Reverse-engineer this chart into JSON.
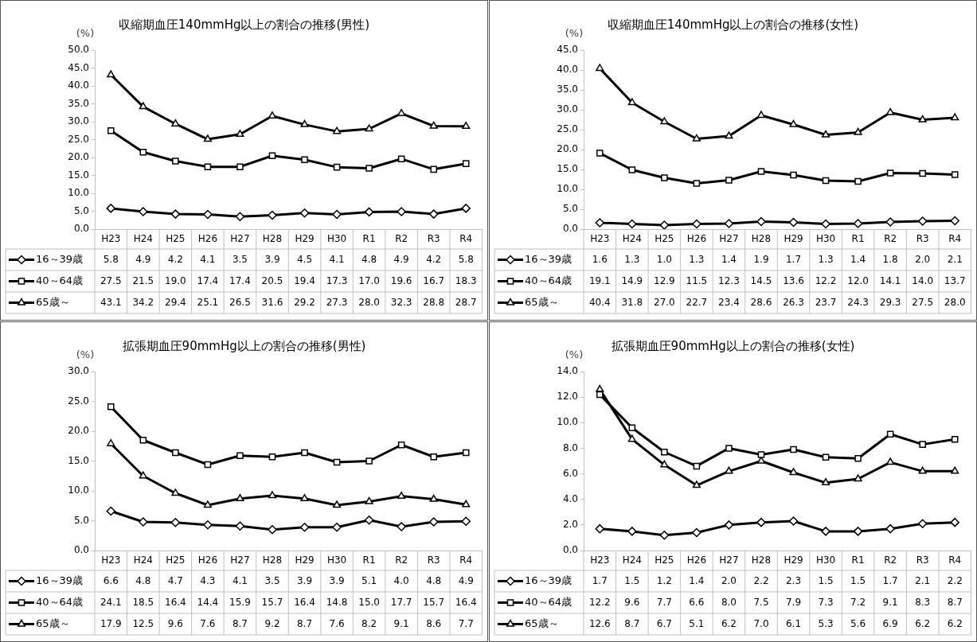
{
  "chart_data": [
    {
      "type": "line",
      "title": "収縮期血圧140mmHg以上の割合の推移(男性)",
      "ylabel": "(%)",
      "categories": [
        "H23",
        "H24",
        "H25",
        "H26",
        "H27",
        "H28",
        "H29",
        "H30",
        "R1",
        "R2",
        "R3",
        "R4"
      ],
      "ylim": [
        0,
        50
      ],
      "yticks": [
        {
          "value": 0,
          "label": "0.0"
        },
        {
          "value": 5,
          "label": "5.0"
        },
        {
          "value": 10,
          "label": "10.0"
        },
        {
          "value": 15,
          "label": "15.0"
        },
        {
          "value": 20,
          "label": "20.0"
        },
        {
          "value": 25,
          "label": "25.0"
        },
        {
          "value": 30,
          "label": "30.0"
        },
        {
          "value": 35,
          "label": "35.0"
        },
        {
          "value": 40,
          "label": "40.0"
        },
        {
          "value": 45,
          "label": "45.0"
        },
        {
          "value": 50,
          "label": "50.0"
        }
      ],
      "grid": false,
      "legend": "bottom left",
      "series": [
        {
          "name": "16～39歳",
          "color": "#000000",
          "marker": "diamond",
          "values": [
            5.8,
            4.9,
            4.2,
            4.1,
            3.5,
            3.9,
            4.5,
            4.1,
            4.8,
            4.9,
            4.2,
            5.8
          ],
          "value_labels": [
            "5.8",
            "4.9",
            "4.2",
            "4.1",
            "3.5",
            "3.9",
            "4.5",
            "4.1",
            "4.8",
            "4.9",
            "4.2",
            "5.8"
          ]
        },
        {
          "name": "40～64歳",
          "color": "#000000",
          "marker": "square",
          "values": [
            27.5,
            21.5,
            19.0,
            17.4,
            17.4,
            20.5,
            19.4,
            17.3,
            17.0,
            19.6,
            16.7,
            18.3
          ],
          "value_labels": [
            "27.5",
            "21.5",
            "19.0",
            "17.4",
            "17.4",
            "20.5",
            "19.4",
            "17.3",
            "17.0",
            "19.6",
            "16.7",
            "18.3"
          ]
        },
        {
          "name": "65歳～",
          "color": "#000000",
          "marker": "triangle",
          "values": [
            43.1,
            34.2,
            29.4,
            25.1,
            26.5,
            31.6,
            29.2,
            27.3,
            28.0,
            32.3,
            28.8,
            28.7
          ],
          "value_labels": [
            "43.1",
            "34.2",
            "29.4",
            "25.1",
            "26.5",
            "31.6",
            "29.2",
            "27.3",
            "28.0",
            "32.3",
            "28.8",
            "28.7"
          ]
        }
      ]
    },
    {
      "type": "line",
      "title": "収縮期血圧140mmHg以上の割合の推移(女性)",
      "ylabel": "(%)",
      "categories": [
        "H23",
        "H24",
        "H25",
        "H26",
        "H27",
        "H28",
        "H29",
        "H30",
        "R1",
        "R2",
        "R3",
        "R4"
      ],
      "ylim": [
        0,
        45
      ],
      "yticks": [
        {
          "value": 0,
          "label": "0.0"
        },
        {
          "value": 5,
          "label": "5.0"
        },
        {
          "value": 10,
          "label": "10.0"
        },
        {
          "value": 15,
          "label": "15.0"
        },
        {
          "value": 20,
          "label": "20.0"
        },
        {
          "value": 25,
          "label": "25.0"
        },
        {
          "value": 30,
          "label": "30.0"
        },
        {
          "value": 35,
          "label": "35.0"
        },
        {
          "value": 40,
          "label": "40.0"
        },
        {
          "value": 45,
          "label": "45.0"
        }
      ],
      "grid": false,
      "legend": "bottom left",
      "series": [
        {
          "name": "16～39歳",
          "color": "#000000",
          "marker": "diamond",
          "values": [
            1.6,
            1.3,
            1.0,
            1.3,
            1.4,
            1.9,
            1.7,
            1.3,
            1.4,
            1.8,
            2.0,
            2.1
          ],
          "value_labels": [
            "1.6",
            "1.3",
            "1.0",
            "1.3",
            "1.4",
            "1.9",
            "1.7",
            "1.3",
            "1.4",
            "1.8",
            "2.0",
            "2.1"
          ]
        },
        {
          "name": "40～64歳",
          "color": "#000000",
          "marker": "square",
          "values": [
            19.1,
            14.9,
            12.9,
            11.5,
            12.3,
            14.5,
            13.6,
            12.2,
            12.0,
            14.1,
            14.0,
            13.7
          ],
          "value_labels": [
            "19.1",
            "14.9",
            "12.9",
            "11.5",
            "12.3",
            "14.5",
            "13.6",
            "12.2",
            "12.0",
            "14.1",
            "14.0",
            "13.7"
          ]
        },
        {
          "name": "65歳～",
          "color": "#000000",
          "marker": "triangle",
          "values": [
            40.4,
            31.8,
            27.0,
            22.7,
            23.4,
            28.6,
            26.3,
            23.7,
            24.3,
            29.3,
            27.5,
            28.0
          ],
          "value_labels": [
            "40.4",
            "31.8",
            "27.0",
            "22.7",
            "23.4",
            "28.6",
            "26.3",
            "23.7",
            "24.3",
            "29.3",
            "27.5",
            "28.0"
          ]
        }
      ]
    },
    {
      "type": "line",
      "title": "拡張期血圧90mmHg以上の割合の推移(男性)",
      "ylabel": "(%)",
      "categories": [
        "H23",
        "H24",
        "H25",
        "H26",
        "H27",
        "H28",
        "H29",
        "H30",
        "R1",
        "R2",
        "R3",
        "R4"
      ],
      "ylim": [
        0,
        30
      ],
      "yticks": [
        {
          "value": 0,
          "label": "0.0"
        },
        {
          "value": 5,
          "label": "5.0"
        },
        {
          "value": 10,
          "label": "10.0"
        },
        {
          "value": 15,
          "label": "15.0"
        },
        {
          "value": 20,
          "label": "20.0"
        },
        {
          "value": 25,
          "label": "25.0"
        },
        {
          "value": 30,
          "label": "30.0"
        }
      ],
      "grid": false,
      "legend": "bottom left",
      "series": [
        {
          "name": "16～39歳",
          "color": "#000000",
          "marker": "diamond",
          "values": [
            6.6,
            4.8,
            4.7,
            4.3,
            4.1,
            3.5,
            3.9,
            3.9,
            5.1,
            4.0,
            4.8,
            4.9
          ],
          "value_labels": [
            "6.6",
            "4.8",
            "4.7",
            "4.3",
            "4.1",
            "3.5",
            "3.9",
            "3.9",
            "5.1",
            "4.0",
            "4.8",
            "4.9"
          ]
        },
        {
          "name": "40～64歳",
          "color": "#000000",
          "marker": "square",
          "values": [
            24.1,
            18.5,
            16.4,
            14.4,
            15.9,
            15.7,
            16.4,
            14.8,
            15.0,
            17.7,
            15.7,
            16.4
          ],
          "value_labels": [
            "24.1",
            "18.5",
            "16.4",
            "14.4",
            "15.9",
            "15.7",
            "16.4",
            "14.8",
            "15.0",
            "17.7",
            "15.7",
            "16.4"
          ]
        },
        {
          "name": "65歳～",
          "color": "#000000",
          "marker": "triangle",
          "values": [
            17.9,
            12.5,
            9.6,
            7.6,
            8.7,
            9.2,
            8.7,
            7.6,
            8.2,
            9.1,
            8.6,
            7.7
          ],
          "value_labels": [
            "17.9",
            "12.5",
            "9.6",
            "7.6",
            "8.7",
            "9.2",
            "8.7",
            "7.6",
            "8.2",
            "9.1",
            "8.6",
            "7.7"
          ]
        }
      ]
    },
    {
      "type": "line",
      "title": "拡張期血圧90mmHg以上の割合の推移(女性)",
      "ylabel": "(%)",
      "categories": [
        "H23",
        "H24",
        "H25",
        "H26",
        "H27",
        "H28",
        "H29",
        "H30",
        "R1",
        "R2",
        "R3",
        "R4"
      ],
      "ylim": [
        0,
        14
      ],
      "yticks": [
        {
          "value": 0,
          "label": "0.0"
        },
        {
          "value": 2,
          "label": "2.0"
        },
        {
          "value": 4,
          "label": "4.0"
        },
        {
          "value": 6,
          "label": "6.0"
        },
        {
          "value": 8,
          "label": "8.0"
        },
        {
          "value": 10,
          "label": "10.0"
        },
        {
          "value": 12,
          "label": "12.0"
        },
        {
          "value": 14,
          "label": "14.0"
        }
      ],
      "grid": false,
      "legend": "bottom left",
      "series": [
        {
          "name": "16～39歳",
          "color": "#000000",
          "marker": "diamond",
          "values": [
            1.7,
            1.5,
            1.2,
            1.4,
            2.0,
            2.2,
            2.3,
            1.5,
            1.5,
            1.7,
            2.1,
            2.2
          ],
          "value_labels": [
            "1.7",
            "1.5",
            "1.2",
            "1.4",
            "2.0",
            "2.2",
            "2.3",
            "1.5",
            "1.5",
            "1.7",
            "2.1",
            "2.2"
          ]
        },
        {
          "name": "40～64歳",
          "color": "#000000",
          "marker": "square",
          "values": [
            12.2,
            9.6,
            7.7,
            6.6,
            8.0,
            7.5,
            7.9,
            7.3,
            7.2,
            9.1,
            8.3,
            8.7
          ],
          "value_labels": [
            "12.2",
            "9.6",
            "7.7",
            "6.6",
            "8.0",
            "7.5",
            "7.9",
            "7.3",
            "7.2",
            "9.1",
            "8.3",
            "8.7"
          ]
        },
        {
          "name": "65歳～",
          "color": "#000000",
          "marker": "triangle",
          "values": [
            12.6,
            8.7,
            6.7,
            5.1,
            6.2,
            7.0,
            6.1,
            5.3,
            5.6,
            6.9,
            6.2,
            6.2
          ],
          "value_labels": [
            "12.6",
            "8.7",
            "6.7",
            "5.1",
            "6.2",
            "7.0",
            "6.1",
            "5.3",
            "5.6",
            "6.9",
            "6.2",
            "6.2"
          ]
        }
      ]
    }
  ]
}
